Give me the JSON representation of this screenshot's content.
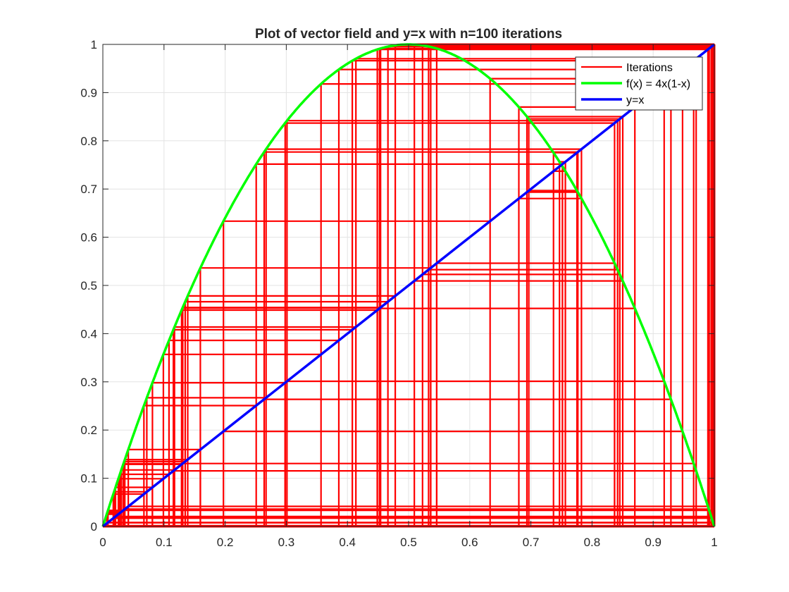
{
  "chart_data": {
    "type": "line",
    "title": "Plot of vector field and y=x with n=100 iterations",
    "xlabel": "",
    "ylabel": "",
    "xlim": [
      0,
      1
    ],
    "ylim": [
      0,
      1
    ],
    "grid": true,
    "x_ticks": [
      0,
      0.1,
      0.2,
      0.3,
      0.4,
      0.5,
      0.6,
      0.7,
      0.8,
      0.9,
      1
    ],
    "x_tick_labels": [
      "0",
      "0.1",
      "0.2",
      "0.3",
      "0.4",
      "0.5",
      "0.6",
      "0.7",
      "0.8",
      "0.9",
      "1"
    ],
    "y_ticks": [
      0,
      0.1,
      0.2,
      0.3,
      0.4,
      0.5,
      0.6,
      0.7,
      0.8,
      0.9,
      1
    ],
    "y_tick_labels": [
      "0",
      "0.1",
      "0.2",
      "0.3",
      "0.4",
      "0.5",
      "0.6",
      "0.7",
      "0.8",
      "0.9",
      "1"
    ],
    "legend_position": "top-right",
    "series": [
      {
        "name": "Iterations",
        "color": "#ff0000",
        "kind": "cobweb",
        "orbit": [
          0.007,
          0.0278,
          0.1082,
          0.3859,
          0.948,
          0.1972,
          0.6333,
          0.929,
          0.2638,
          0.7768,
          0.6935,
          0.8502,
          0.5094,
          0.9996,
          0.0016,
          0.0064,
          0.0254,
          0.099,
          0.3568,
          0.918,
          0.3011,
          0.8418,
          0.5327,
          0.9957,
          0.0171,
          0.0672,
          0.2508,
          0.7516,
          0.7468,
          0.7564,
          0.737,
          0.7754,
          0.6966,
          0.8454,
          0.5228,
          0.9979,
          0.0084,
          0.0333,
          0.1288,
          0.4488,
          0.9895,
          0.0416,
          0.1595,
          0.5362,
          0.9948,
          0.0207,
          0.0811,
          0.2981,
          0.8369,
          0.546,
          0.9915,
          0.0337,
          0.1302,
          0.453,
          0.9912,
          0.0349,
          0.1347,
          0.4662,
          0.9954,
          0.0183,
          0.0719,
          0.2669,
          0.7827,
          0.6803,
          0.87,
          0.4524,
          0.9909,
          0.036,
          0.1388,
          0.4782,
          0.9981,
          0.0076,
          0.0302,
          0.1172,
          0.4138,
          0.9703,
          0.1153,
          0.408,
          0.9662,
          0.1306,
          0.4542,
          0.9916,
          0.0333,
          0.1288,
          0.4488,
          0.9895,
          0.0416,
          0.1595,
          0.5362,
          0.9948,
          0.0207,
          0.0811,
          0.2981,
          0.8369,
          0.546,
          0.9915,
          0.0337,
          0.1302,
          0.453,
          0.9912
        ]
      },
      {
        "name": "f(x) = 4x(1-x)",
        "color": "#00ff00",
        "kind": "function",
        "formula": "4x(1-x)",
        "x_range": [
          0,
          1
        ]
      },
      {
        "name": "y=x",
        "color": "#0000ff",
        "kind": "line",
        "x": [
          0,
          1
        ],
        "y": [
          0,
          1
        ]
      }
    ]
  }
}
